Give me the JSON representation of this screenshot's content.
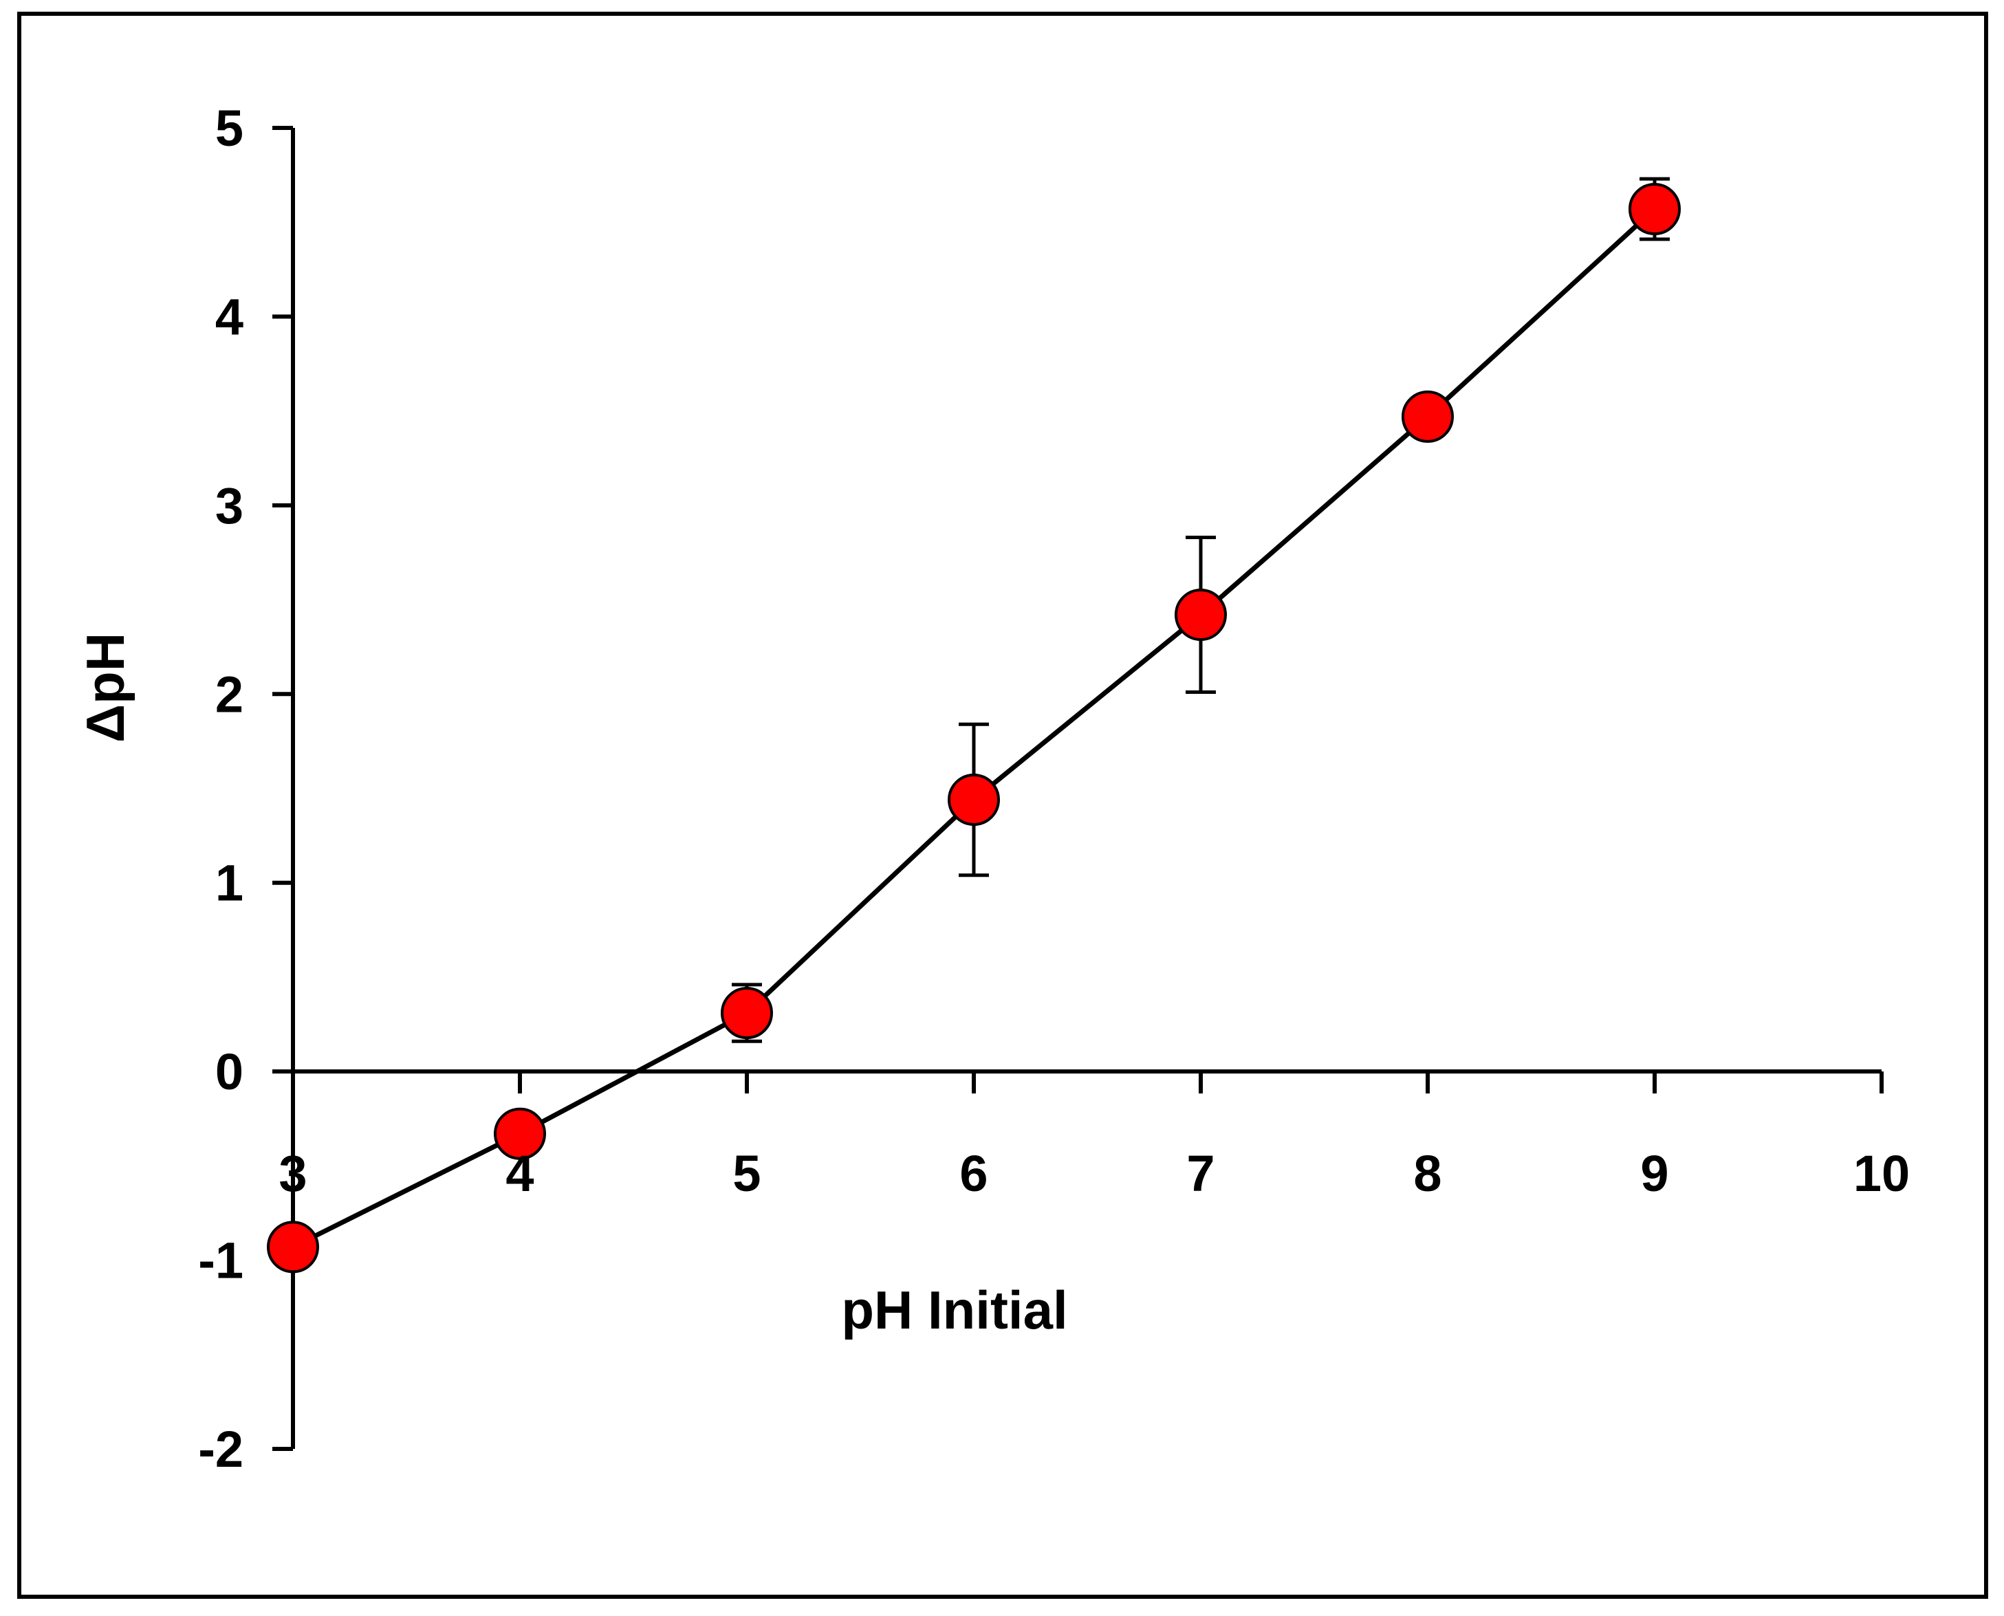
{
  "chart_data": {
    "type": "scatter",
    "xlabel": "pH Initial",
    "ylabel": "ΔpH",
    "xlim": [
      3,
      10
    ],
    "ylim": [
      -2,
      5
    ],
    "x_ticks": [
      3,
      4,
      5,
      6,
      7,
      8,
      9,
      10
    ],
    "y_ticks": [
      -2,
      -1,
      0,
      1,
      2,
      3,
      4,
      5
    ],
    "x_ticks_labels": [
      "3",
      "4",
      "5",
      "6",
      "7",
      "8",
      "9",
      "10"
    ],
    "y_ticks_labels": [
      "-2",
      "-1",
      "0",
      "1",
      "2",
      "3",
      "4",
      "5"
    ],
    "grid": false,
    "legend": "none",
    "series": [
      {
        "x": [
          3,
          4,
          5,
          6,
          7,
          8,
          9
        ],
        "y": [
          -0.93,
          -0.33,
          0.31,
          1.44,
          2.42,
          3.47,
          4.57
        ],
        "error": [
          0.05,
          0.05,
          0.15,
          0.4,
          0.41,
          0.05,
          0.16
        ],
        "marker_color": "#ff0000",
        "line_color": "#000000"
      }
    ]
  }
}
